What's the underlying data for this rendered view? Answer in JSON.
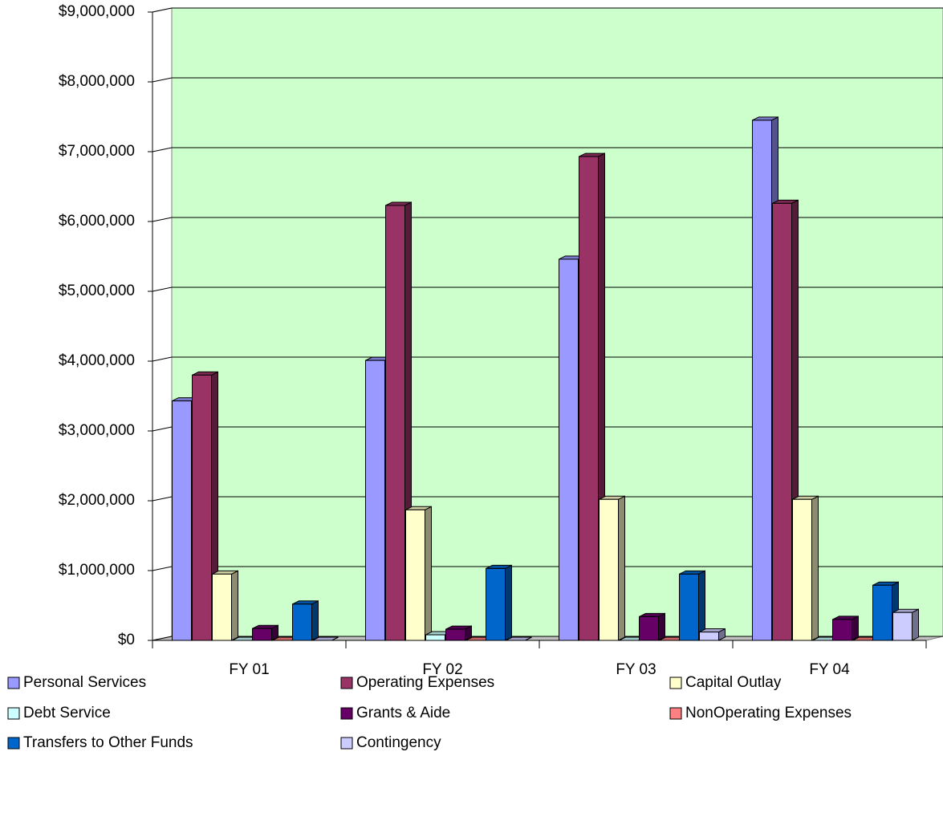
{
  "chart_data": {
    "type": "bar3d",
    "categories": [
      "FY 01",
      "FY 02",
      "FY 03",
      "FY 04"
    ],
    "series": [
      {
        "name": "Personal Services",
        "color": "#9999ff",
        "values": [
          3430000,
          4010000,
          5460000,
          7450000
        ]
      },
      {
        "name": "Operating Expenses",
        "color": "#993366",
        "values": [
          3800000,
          6230000,
          6930000,
          6260000
        ]
      },
      {
        "name": "Capital Outlay",
        "color": "#ffffcc",
        "values": [
          950000,
          1870000,
          2020000,
          2020000
        ]
      },
      {
        "name": "Debt Service",
        "color": "#ccffff",
        "values": [
          0,
          80000,
          0,
          0
        ]
      },
      {
        "name": "Grants & Aide",
        "color": "#660066",
        "values": [
          170000,
          160000,
          340000,
          300000
        ]
      },
      {
        "name": "NonOperating Expenses",
        "color": "#ff8080",
        "values": [
          0,
          0,
          0,
          0
        ]
      },
      {
        "name": "Transfers to Other Funds",
        "color": "#0066cc",
        "values": [
          520000,
          1030000,
          950000,
          790000
        ]
      },
      {
        "name": "Contingency",
        "color": "#ccccff",
        "values": [
          0,
          0,
          120000,
          400000
        ]
      }
    ],
    "ylim": [
      0,
      9000000
    ],
    "yticks": [
      {
        "value": 0,
        "label": "$0"
      },
      {
        "value": 1000000,
        "label": "$1,000,000"
      },
      {
        "value": 2000000,
        "label": "$2,000,000"
      },
      {
        "value": 3000000,
        "label": "$3,000,000"
      },
      {
        "value": 4000000,
        "label": "$4,000,000"
      },
      {
        "value": 5000000,
        "label": "$5,000,000"
      },
      {
        "value": 6000000,
        "label": "$6,000,000"
      },
      {
        "value": 7000000,
        "label": "$7,000,000"
      },
      {
        "value": 8000000,
        "label": "$8,000,000"
      },
      {
        "value": 9000000,
        "label": "$9,000,000"
      }
    ],
    "grid": true,
    "wall_color": "#ccffcc",
    "legend": "bottom"
  }
}
